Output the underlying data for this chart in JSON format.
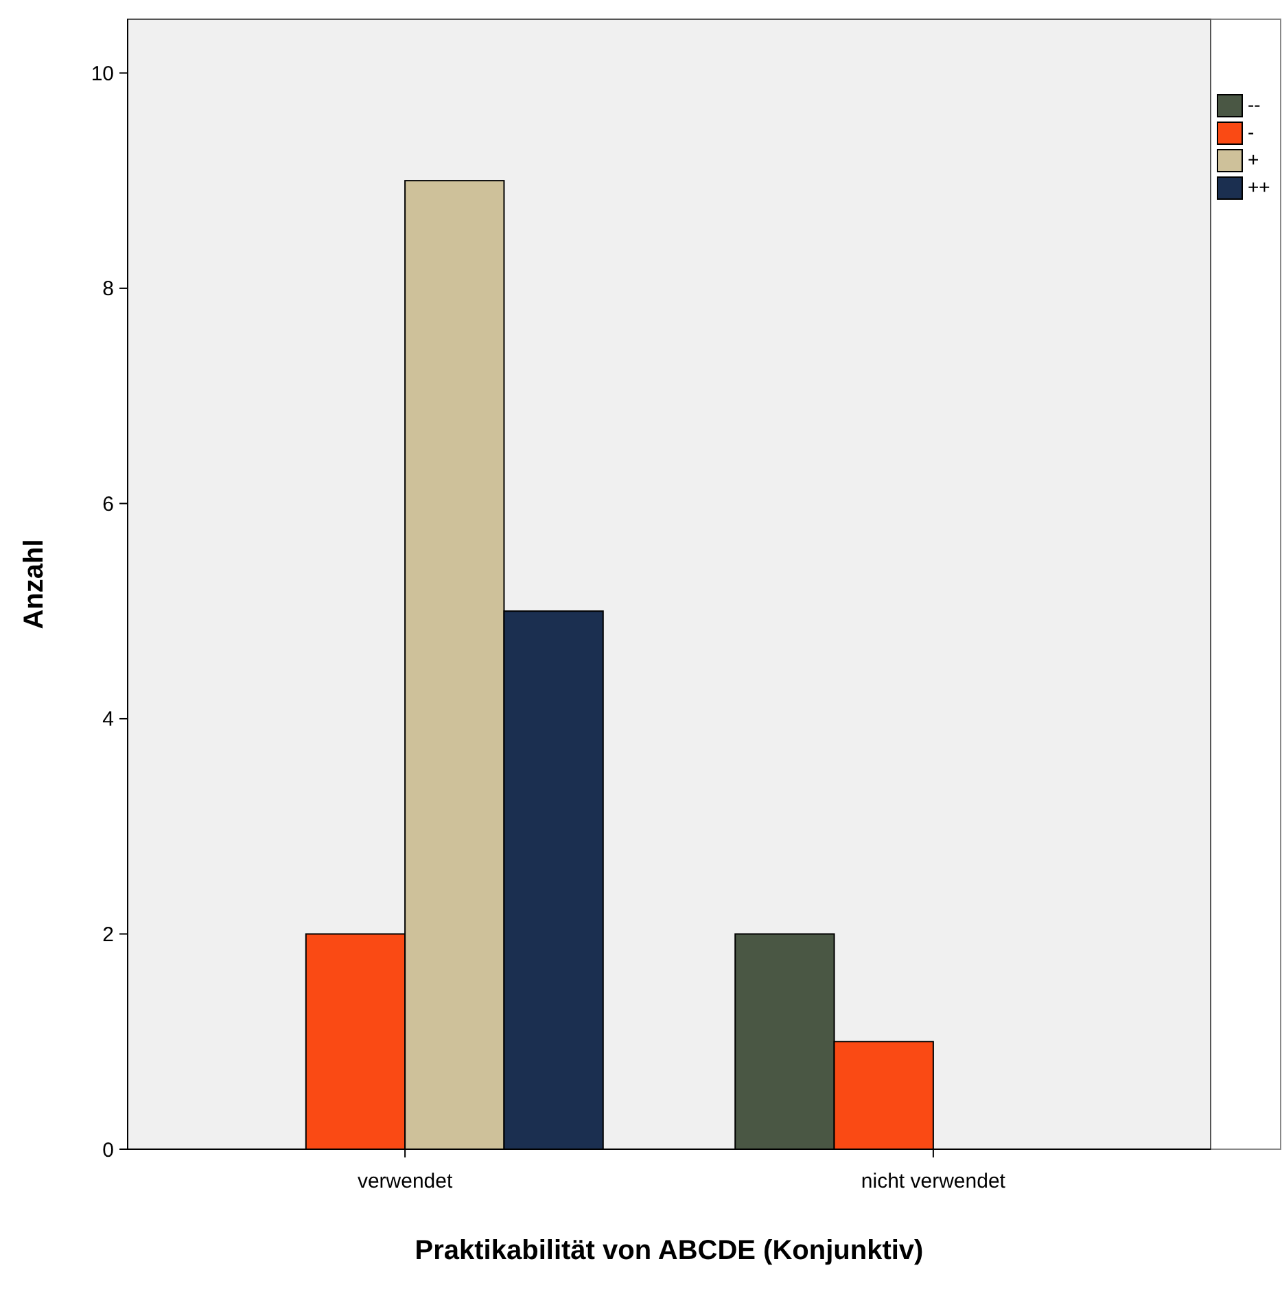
{
  "chart_data": {
    "type": "bar",
    "xlabel": "Praktikabilität von ABCDE (Konjunktiv)",
    "ylabel": "Anzahl",
    "categories": [
      "verwendet",
      "nicht verwendet"
    ],
    "series": [
      {
        "name": "--",
        "color": "#4a5744",
        "values": [
          0,
          2
        ]
      },
      {
        "name": "-",
        "color": "#fa4a14",
        "values": [
          2,
          1
        ]
      },
      {
        "name": "+",
        "color": "#cec19a",
        "values": [
          9,
          0
        ]
      },
      {
        "name": "++",
        "color": "#1b2f50",
        "values": [
          5,
          0
        ]
      }
    ],
    "ylim": [
      0,
      10.5
    ],
    "yticks": [
      0,
      2,
      4,
      6,
      8,
      10
    ],
    "legend": "top right"
  }
}
